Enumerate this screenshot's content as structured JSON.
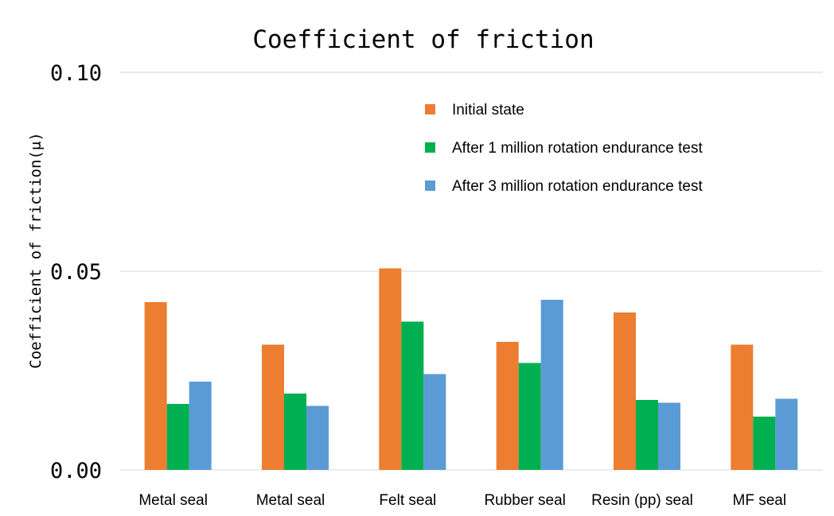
{
  "chart_data": {
    "type": "bar",
    "title": "Coefficient of friction",
    "xlabel": "",
    "ylabel": "Coefficient of friction(μ)",
    "ylim": [
      0,
      0.1
    ],
    "yticks": [
      "0.00",
      "0.05",
      "0.10"
    ],
    "grid": true,
    "legend_position": "top-right",
    "categories": [
      "Metal seal",
      "Metal seal",
      "Felt seal",
      "Rubber seal",
      "Resin (pp) seal",
      "MF seal"
    ],
    "series": [
      {
        "name": "Initial state",
        "color": "#ED7D31",
        "values": [
          0.0422,
          0.0315,
          0.0507,
          0.0322,
          0.0396,
          0.0315
        ]
      },
      {
        "name": "After 1 million rotation endurance test",
        "color": "#00B050",
        "values": [
          0.0166,
          0.0192,
          0.0373,
          0.0269,
          0.0176,
          0.0134
        ]
      },
      {
        "name": "After 3 million rotation endurance test",
        "color": "#5B9BD5",
        "values": [
          0.0222,
          0.0161,
          0.0241,
          0.0428,
          0.0169,
          0.0179
        ]
      }
    ]
  }
}
